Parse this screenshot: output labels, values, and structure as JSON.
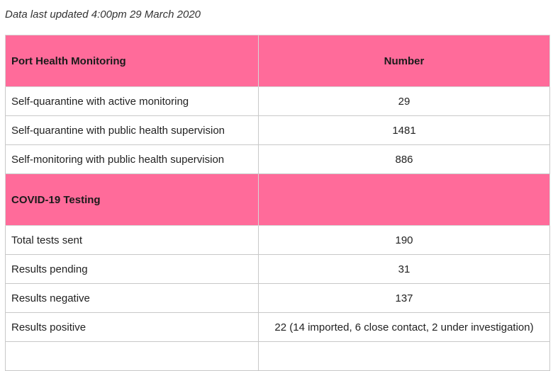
{
  "updated_text": "Data last updated 4:00pm 29 March 2020",
  "colors": {
    "header_background": "#ff6b9a",
    "border": "#c8c8c8"
  },
  "sections": [
    {
      "title": "Port Health Monitoring",
      "number_header": "Number",
      "rows": [
        {
          "label": "Self-quarantine with active monitoring",
          "value": "29"
        },
        {
          "label": "Self-quarantine with public health supervision",
          "value": "1481"
        },
        {
          "label": "Self-monitoring with public health supervision",
          "value": "886"
        }
      ]
    },
    {
      "title": "COVID-19 Testing",
      "number_header": "",
      "rows": [
        {
          "label": "Total tests sent",
          "value": "190"
        },
        {
          "label": "Results pending",
          "value": "31"
        },
        {
          "label": "Results negative",
          "value": "137"
        },
        {
          "label": "Results positive",
          "value": "22 (14 imported, 6 close contact, 2 under investigation)"
        }
      ]
    }
  ]
}
